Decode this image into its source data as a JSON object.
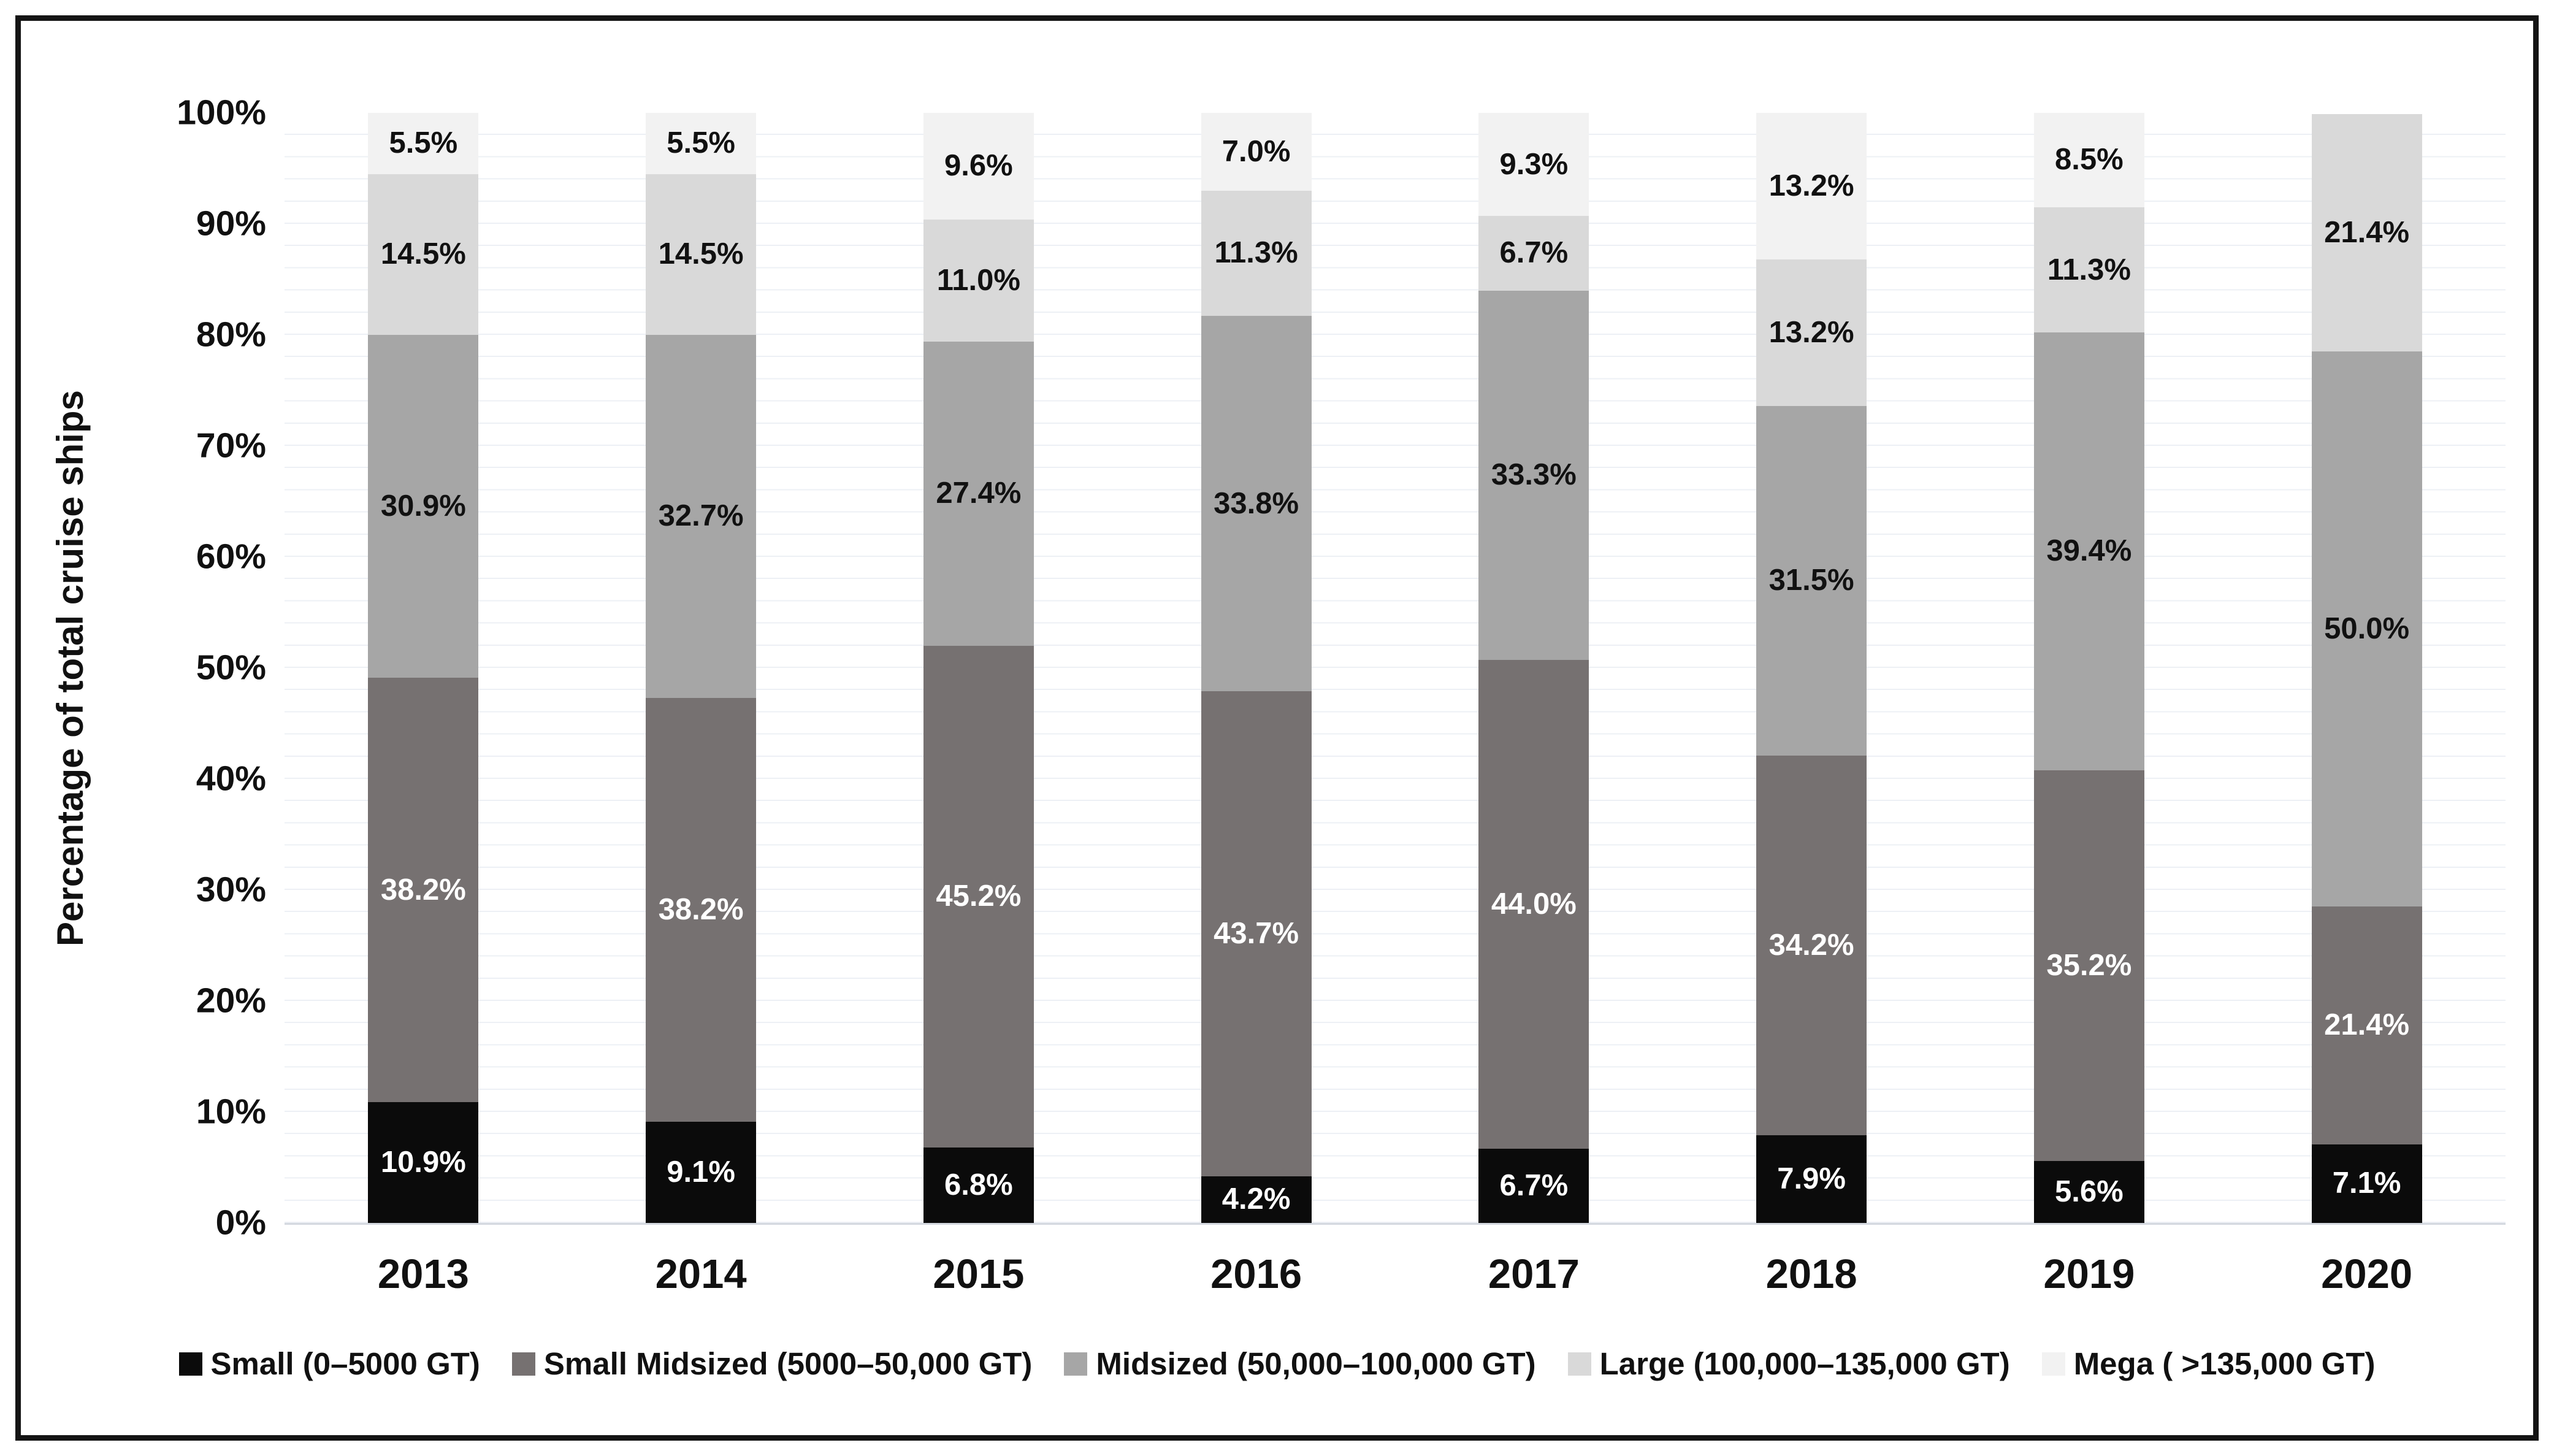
{
  "chart_data": {
    "type": "bar",
    "subtype": "stacked-100-percent",
    "title": "",
    "ylabel": "Percentage of total cruise ships",
    "xlabel": "",
    "ylim": [
      0,
      100
    ],
    "grid": "faint horizontal gridlines every 2%",
    "legend_position": "bottom",
    "ytick_labels": [
      "0%",
      "10%",
      "20%",
      "30%",
      "40%",
      "50%",
      "60%",
      "70%",
      "80%",
      "90%",
      "100%"
    ],
    "categories": [
      "2013",
      "2014",
      "2015",
      "2016",
      "2017",
      "2018",
      "2019",
      "2020"
    ],
    "series": [
      {
        "name": "Small (0–5000 GT)",
        "color": "#0b0b0b",
        "label_color": "#ffffff",
        "values": [
          10.9,
          9.1,
          6.8,
          4.2,
          6.7,
          7.9,
          5.6,
          7.1
        ],
        "labels": [
          "10.9%",
          "9.1%",
          "6.8%",
          "4.2%",
          "6.7%",
          "7.9%",
          "5.6%",
          "7.1%"
        ]
      },
      {
        "name": "Small Midsized (5000–50,000 GT)",
        "color": "#767171",
        "label_color": "#ffffff",
        "values": [
          38.2,
          38.2,
          45.2,
          43.7,
          44.0,
          34.2,
          35.2,
          21.4
        ],
        "labels": [
          "38.2%",
          "38.2%",
          "45.2%",
          "43.7%",
          "44.0%",
          "34.2%",
          "35.2%",
          "21.4%"
        ]
      },
      {
        "name": "Midsized (50,000–100,000 GT)",
        "color": "#a6a6a6",
        "label_color": "#111111",
        "values": [
          30.9,
          32.7,
          27.4,
          33.8,
          33.3,
          31.5,
          39.4,
          50.0
        ],
        "labels": [
          "30.9%",
          "32.7%",
          "27.4%",
          "33.8%",
          "33.3%",
          "31.5%",
          "39.4%",
          "50.0%"
        ]
      },
      {
        "name": "Large (100,000–135,000 GT)",
        "color": "#d9d9d9",
        "label_color": "#111111",
        "values": [
          14.5,
          14.5,
          11.0,
          11.3,
          6.7,
          13.2,
          11.3,
          21.4
        ],
        "labels": [
          "14.5%",
          "14.5%",
          "11.0%",
          "11.3%",
          "6.7%",
          "13.2%",
          "11.3%",
          "21.4%"
        ]
      },
      {
        "name": "Mega ( >135,000 GT)",
        "color": "#f2f2f2",
        "label_color": "#111111",
        "values": [
          5.5,
          5.5,
          9.6,
          7.0,
          9.3,
          13.2,
          8.5,
          0
        ],
        "labels": [
          "5.5%",
          "5.5%",
          "9.6%",
          "7.0%",
          "9.3%",
          "13.2%",
          "8.5%",
          ""
        ]
      }
    ]
  }
}
